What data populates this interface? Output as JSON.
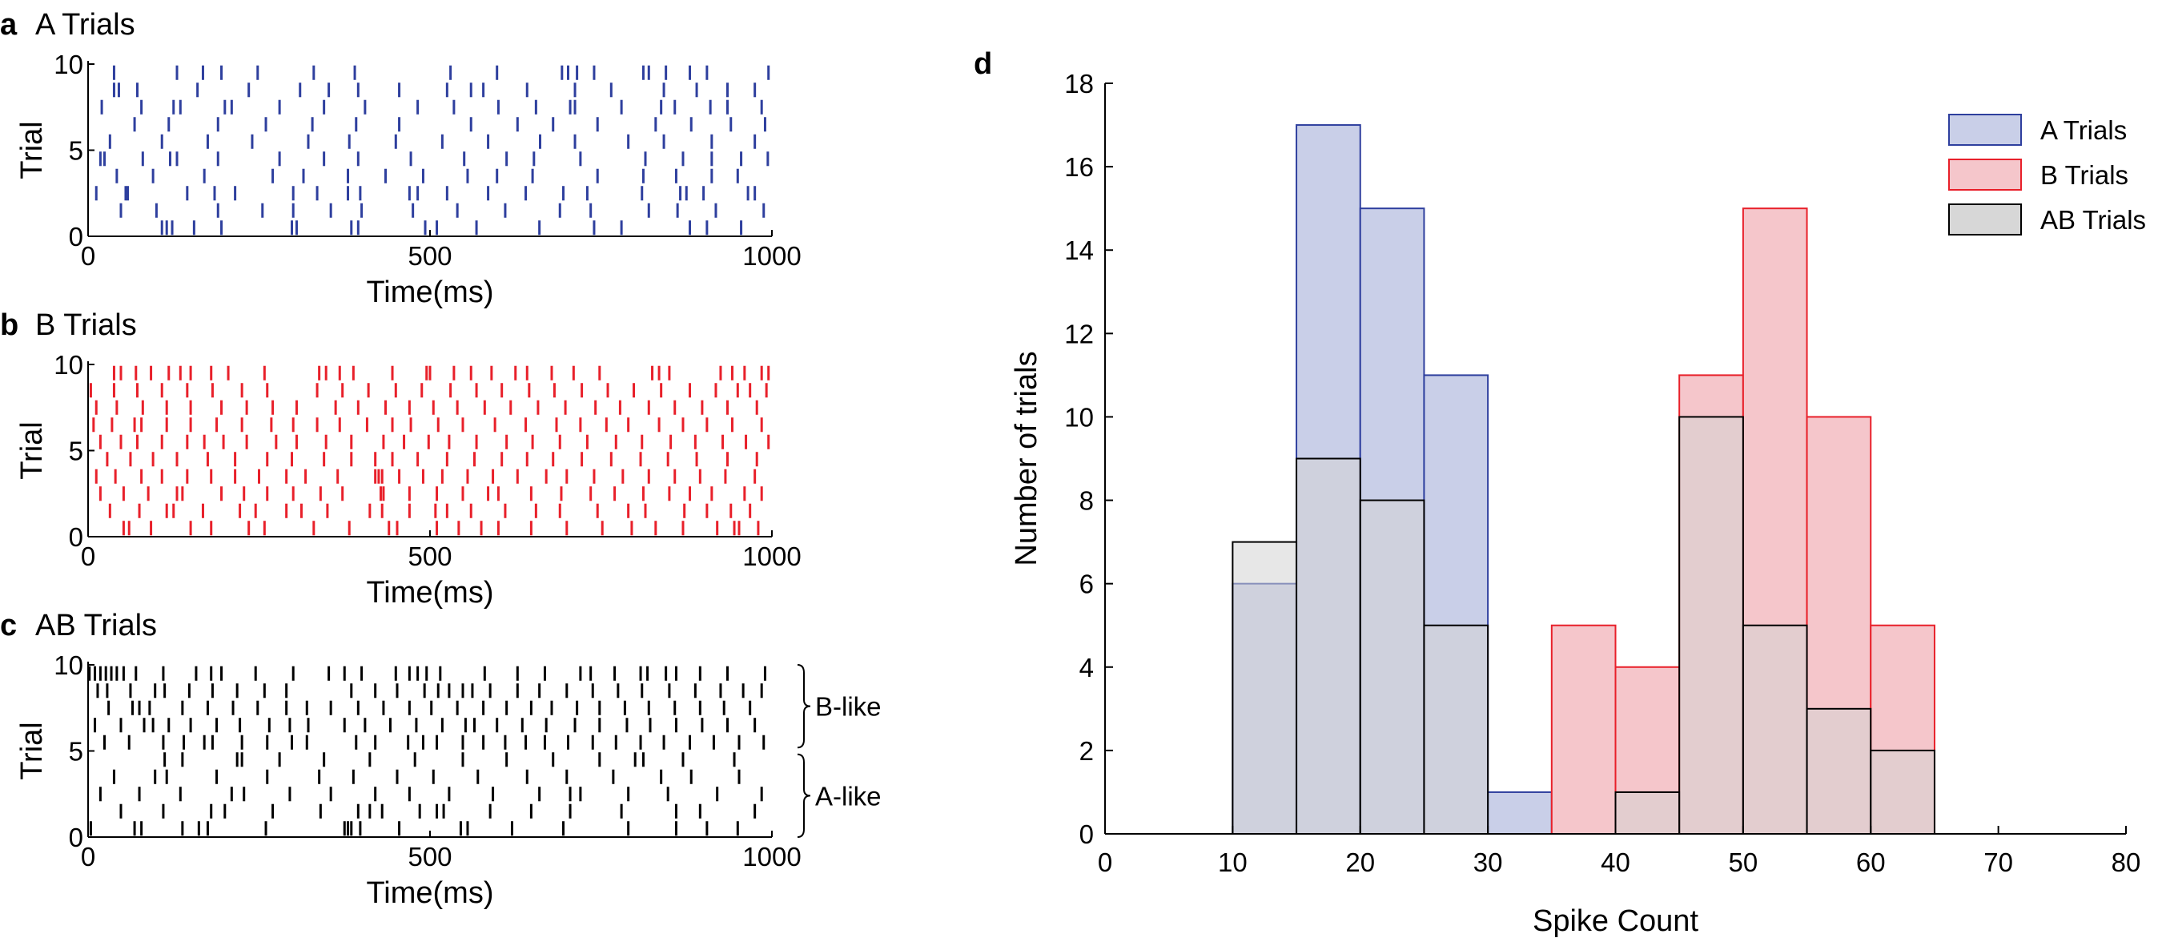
{
  "chart_data": [
    {
      "type": "scatter",
      "panel": "a",
      "title": "A Trials",
      "xlabel": "Time(ms)",
      "ylabel": "Trial",
      "xlim": [
        0,
        1000
      ],
      "ylim": [
        0,
        10
      ],
      "xticks": [
        0,
        500,
        1000
      ],
      "yticks": [
        0,
        5,
        10
      ],
      "color": "#2e3f9e",
      "trials": [
        {
          "trial": 1,
          "spikes": [
            108,
            115,
            123,
            155,
            195,
            298,
            305,
            385,
            395,
            493,
            510,
            568,
            660,
            740,
            780,
            880,
            905,
            955
          ]
        },
        {
          "trial": 2,
          "spikes": [
            48,
            100,
            190,
            255,
            300,
            355,
            400,
            475,
            540,
            610,
            690,
            735,
            820,
            862,
            918,
            988
          ]
        },
        {
          "trial": 3,
          "spikes": [
            12,
            55,
            58,
            145,
            185,
            215,
            300,
            335,
            380,
            398,
            470,
            482,
            525,
            585,
            640,
            695,
            730,
            810,
            866,
            875,
            900,
            965,
            975
          ]
        },
        {
          "trial": 4,
          "spikes": [
            42,
            95,
            170,
            270,
            315,
            380,
            435,
            490,
            555,
            598,
            650,
            745,
            812,
            860,
            912,
            950
          ]
        },
        {
          "trial": 5,
          "spikes": [
            18,
            24,
            80,
            120,
            130,
            190,
            280,
            345,
            395,
            472,
            550,
            612,
            652,
            720,
            815,
            870,
            912,
            955,
            994
          ]
        },
        {
          "trial": 6,
          "spikes": [
            32,
            108,
            175,
            240,
            322,
            382,
            450,
            518,
            585,
            661,
            712,
            790,
            842,
            912,
            975
          ]
        },
        {
          "trial": 7,
          "spikes": [
            68,
            118,
            190,
            260,
            328,
            392,
            455,
            560,
            628,
            680,
            745,
            830,
            882,
            940,
            990
          ]
        },
        {
          "trial": 8,
          "spikes": [
            20,
            78,
            125,
            135,
            200,
            210,
            280,
            345,
            405,
            482,
            535,
            600,
            655,
            705,
            712,
            780,
            838,
            858,
            910,
            935,
            985
          ]
        },
        {
          "trial": 9,
          "spikes": [
            38,
            45,
            72,
            160,
            235,
            310,
            352,
            395,
            455,
            525,
            560,
            578,
            642,
            712,
            765,
            842,
            890,
            935,
            975
          ]
        },
        {
          "trial": 10,
          "spikes": [
            38,
            130,
            168,
            195,
            248,
            330,
            390,
            530,
            598,
            693,
            702,
            715,
            740,
            812,
            820,
            845,
            880,
            905,
            995
          ]
        }
      ]
    },
    {
      "type": "scatter",
      "panel": "b",
      "title": "B Trials",
      "xlabel": "Time(ms)",
      "ylabel": "Trial",
      "xlim": [
        0,
        1000
      ],
      "ylim": [
        0,
        10
      ],
      "xticks": [
        0,
        500,
        1000
      ],
      "yticks": [
        0,
        5,
        10
      ],
      "color": "#e8202a",
      "trials": [
        {
          "trial": 1,
          "spikes": [
            52,
            60,
            92,
            150,
            180,
            235,
            258,
            330,
            382,
            440,
            452,
            510,
            542,
            575,
            600,
            648,
            700,
            752,
            795,
            830,
            870,
            920,
            945,
            952,
            980
          ]
        },
        {
          "trial": 2,
          "spikes": [
            32,
            75,
            115,
            125,
            168,
            222,
            245,
            290,
            312,
            350,
            412,
            430,
            470,
            508,
            525,
            560,
            610,
            655,
            690,
            745,
            790,
            815,
            872,
            905,
            940,
            968
          ]
        },
        {
          "trial": 3,
          "spikes": [
            18,
            52,
            88,
            130,
            138,
            195,
            228,
            262,
            300,
            340,
            372,
            428,
            432,
            470,
            510,
            548,
            585,
            600,
            648,
            692,
            735,
            770,
            812,
            850,
            880,
            912,
            960,
            985
          ]
        },
        {
          "trial": 4,
          "spikes": [
            12,
            40,
            78,
            108,
            145,
            180,
            215,
            250,
            290,
            318,
            365,
            420,
            425,
            430,
            455,
            490,
            518,
            555,
            592,
            628,
            670,
            700,
            740,
            782,
            820,
            858,
            895,
            932,
            975
          ]
        },
        {
          "trial": 5,
          "spikes": [
            28,
            62,
            95,
            130,
            175,
            215,
            262,
            298,
            345,
            385,
            420,
            445,
            482,
            525,
            565,
            605,
            642,
            680,
            722,
            765,
            808,
            848,
            890,
            935,
            978
          ]
        },
        {
          "trial": 6,
          "spikes": [
            18,
            48,
            72,
            108,
            145,
            170,
            198,
            232,
            275,
            305,
            348,
            385,
            432,
            462,
            498,
            528,
            568,
            612,
            650,
            690,
            730,
            772,
            810,
            852,
            888,
            928,
            962,
            995
          ]
        },
        {
          "trial": 7,
          "spikes": [
            8,
            35,
            68,
            78,
            115,
            150,
            188,
            225,
            268,
            300,
            335,
            368,
            408,
            445,
            472,
            512,
            548,
            595,
            640,
            685,
            720,
            758,
            790,
            835,
            870,
            905,
            942,
            985
          ]
        },
        {
          "trial": 8,
          "spikes": [
            12,
            42,
            80,
            115,
            150,
            195,
            232,
            270,
            305,
            362,
            395,
            435,
            470,
            505,
            540,
            580,
            618,
            658,
            698,
            742,
            778,
            820,
            858,
            898,
            935,
            978
          ]
        },
        {
          "trial": 9,
          "spikes": [
            4,
            38,
            72,
            108,
            145,
            182,
            225,
            262,
            335,
            372,
            410,
            450,
            488,
            530,
            568,
            605,
            645,
            682,
            722,
            760,
            798,
            838,
            880,
            918,
            950,
            968,
            992
          ]
        },
        {
          "trial": 10,
          "spikes": [
            38,
            48,
            70,
            92,
            118,
            135,
            150,
            180,
            205,
            258,
            338,
            348,
            368,
            388,
            445,
            495,
            500,
            535,
            560,
            590,
            625,
            642,
            678,
            710,
            748,
            825,
            835,
            850,
            925,
            942,
            960,
            985,
            995
          ]
        }
      ]
    },
    {
      "type": "scatter",
      "panel": "c",
      "title": "AB Trials",
      "xlabel": "Time(ms)",
      "ylabel": "Trial",
      "xlim": [
        0,
        1000
      ],
      "ylim": [
        0,
        10
      ],
      "xticks": [
        0,
        500,
        1000
      ],
      "yticks": [
        0,
        5,
        10
      ],
      "color": "#000000",
      "group_labels": [
        "B-like",
        "A-like"
      ],
      "trials": [
        {
          "trial": 1,
          "spikes": [
            4,
            68,
            78,
            138,
            162,
            175,
            260,
            375,
            380,
            385,
            398,
            455,
            545,
            555,
            620,
            695,
            790,
            860,
            905,
            950
          ]
        },
        {
          "trial": 2,
          "spikes": [
            48,
            110,
            180,
            200,
            270,
            340,
            395,
            412,
            430,
            485,
            510,
            520,
            588,
            648,
            705,
            780,
            860,
            895,
            975
          ]
        },
        {
          "trial": 3,
          "spikes": [
            18,
            75,
            135,
            210,
            228,
            295,
            355,
            420,
            470,
            528,
            592,
            660,
            705,
            720,
            790,
            848,
            920,
            985
          ]
        },
        {
          "trial": 4,
          "spikes": [
            38,
            98,
            115,
            188,
            262,
            338,
            388,
            452,
            505,
            570,
            642,
            700,
            768,
            838,
            882,
            952
          ]
        },
        {
          "trial": 5,
          "spikes": [
            112,
            138,
            218,
            225,
            280,
            345,
            412,
            478,
            548,
            612,
            680,
            748,
            800,
            812,
            870,
            945
          ]
        },
        {
          "trial": 6,
          "spikes": [
            24,
            60,
            110,
            140,
            170,
            182,
            225,
            262,
            298,
            320,
            392,
            420,
            468,
            490,
            510,
            548,
            578,
            610,
            640,
            668,
            702,
            738,
            772,
            808,
            842,
            880,
            915,
            952,
            988
          ]
        },
        {
          "trial": 7,
          "spikes": [
            10,
            48,
            82,
            95,
            118,
            150,
            188,
            222,
            265,
            295,
            322,
            375,
            405,
            442,
            480,
            518,
            552,
            565,
            598,
            635,
            670,
            712,
            748,
            788,
            822,
            860,
            898,
            935,
            975
          ]
        },
        {
          "trial": 8,
          "spikes": [
            30,
            65,
            75,
            90,
            138,
            175,
            212,
            248,
            290,
            320,
            355,
            395,
            432,
            470,
            502,
            540,
            578,
            612,
            648,
            678,
            715,
            748,
            785,
            820,
            858,
            895,
            930,
            968
          ]
        },
        {
          "trial": 9,
          "spikes": [
            14,
            28,
            62,
            98,
            112,
            148,
            182,
            218,
            258,
            290,
            385,
            420,
            452,
            492,
            512,
            528,
            548,
            562,
            588,
            628,
            660,
            700,
            738,
            775,
            810,
            850,
            888,
            925,
            958,
            985
          ]
        },
        {
          "trial": 10,
          "spikes": [
            2,
            10,
            18,
            26,
            34,
            42,
            52,
            70,
            110,
            158,
            180,
            195,
            245,
            300,
            352,
            375,
            400,
            450,
            470,
            482,
            495,
            515,
            580,
            628,
            668,
            720,
            735,
            770,
            808,
            818,
            845,
            860,
            895,
            935,
            990
          ]
        }
      ]
    },
    {
      "type": "bar",
      "panel": "d",
      "histogram": true,
      "xlabel": "Spike Count",
      "ylabel": "Number of trials",
      "xlim": [
        0,
        80
      ],
      "ylim": [
        0,
        18
      ],
      "xticks": [
        0,
        10,
        20,
        30,
        40,
        50,
        60,
        70,
        80
      ],
      "yticks": [
        0,
        2,
        4,
        6,
        8,
        10,
        12,
        14,
        16,
        18
      ],
      "bin_edges": [
        0,
        5,
        10,
        15,
        20,
        25,
        30,
        35,
        40,
        45,
        50,
        55,
        60,
        65,
        70,
        75,
        80
      ],
      "legend_position": "top-right",
      "series": [
        {
          "name": "A Trials",
          "fill": "#c9cfe8",
          "stroke": "#2e3f9e",
          "values": [
            0,
            0,
            6,
            17,
            15,
            11,
            1,
            0,
            0,
            0,
            0,
            0,
            0,
            0,
            0,
            0
          ]
        },
        {
          "name": "B Trials",
          "fill": "#f5c6cb",
          "stroke": "#e8202a",
          "values": [
            0,
            0,
            0,
            0,
            0,
            0,
            0,
            5,
            4,
            11,
            15,
            10,
            5,
            0,
            0,
            0
          ]
        },
        {
          "name": "AB Trials",
          "fill": "#d3d3d3",
          "stroke": "#000000",
          "values": [
            0,
            0,
            7,
            9,
            8,
            5,
            0,
            0,
            1,
            10,
            5,
            3,
            2,
            0,
            0,
            0
          ]
        }
      ]
    }
  ]
}
